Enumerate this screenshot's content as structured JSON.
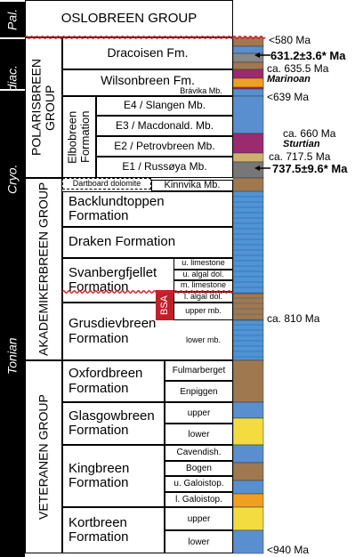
{
  "eras": [
    "Pal.",
    "Ediac.",
    "Cryo.",
    "Tonian"
  ],
  "groups": [
    "OSLOBREEN GROUP",
    "POLARISBREEN GROUP",
    "AKADEMIKERBREEN GROUP",
    "VETERANEN GROUP"
  ],
  "formations": [
    {
      "name": "Dracoisen Fm.",
      "members": []
    },
    {
      "name": "Wilsonbreen Fm.",
      "members": [
        "Brávika Mb."
      ]
    },
    {
      "name": "Elbobreen Formation",
      "members": [
        "E4 / Slangen Mb.",
        "E3 / Macdonald. Mb.",
        "E2 / Petrovbreen Mb.",
        "E1 / Russøya Mb."
      ]
    },
    {
      "name": "Dartboard dolomite",
      "members": []
    },
    {
      "name": "Kinnvika Mb.",
      "members": []
    },
    {
      "name": "Backlundtoppen Formation",
      "members": []
    },
    {
      "name": "Draken Formation",
      "members": []
    },
    {
      "name": "Svanbergfjellet Formation",
      "members": [
        "u. limestone",
        "u. algal dol.",
        "m. limestone",
        "l. algal dol."
      ]
    },
    {
      "name": "Grusdievbreen Formation",
      "members": [
        "upper mb.",
        "lower mb."
      ]
    },
    {
      "name": "Oxfordbreen Formation",
      "members": [
        "Fulmarberget",
        "Enpiggen"
      ]
    },
    {
      "name": "Glasgowbreen Formation",
      "members": [
        "upper",
        "lower"
      ]
    },
    {
      "name": "Kingbreen Formation",
      "members": [
        "Cavendish.",
        "Bogen",
        "u. Galoistop.",
        "l. Galoistop."
      ]
    },
    {
      "name": "Kortbreen Formation",
      "members": [
        "upper",
        "lower"
      ]
    }
  ],
  "bsa": "BSA",
  "ages": [
    "<580 Ma",
    "631.2±3.6* Ma",
    "ca. 635.5 Ma",
    "Marinoan",
    "<639 Ma",
    "ca. 660 Ma",
    "Sturtian",
    "ca. 717.5 Ma",
    "737.5±9.6* Ma",
    "ca. 810 Ma",
    "<940 Ma"
  ]
}
